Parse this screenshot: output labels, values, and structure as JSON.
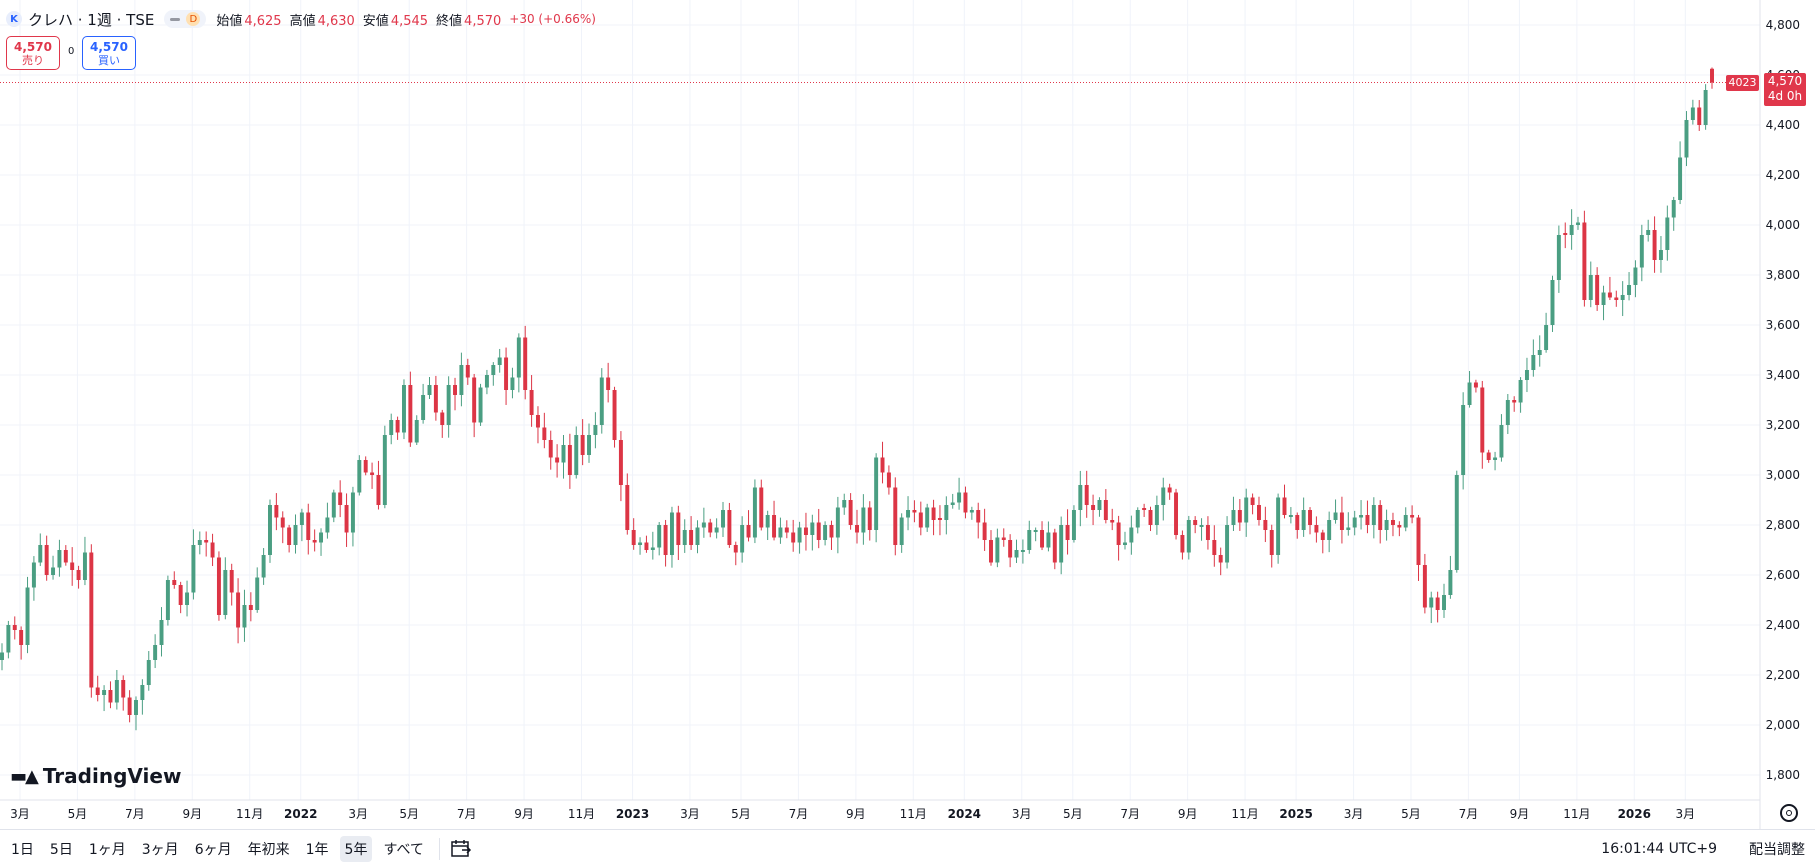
{
  "header": {
    "symbol_badge": "K",
    "symbol_title": "クレハ · 1週 · TSE",
    "interval_badge": "D",
    "open_label": "始値",
    "open_value": "4,625",
    "high_label": "高値",
    "high_value": "4,630",
    "low_label": "安値",
    "low_value": "4,545",
    "close_label": "終値",
    "close_value": "4,570",
    "change": "+30 (+0.66%)"
  },
  "trade": {
    "sell_price": "4,570",
    "sell_label": "売り",
    "spread": "0",
    "buy_price": "4,570",
    "buy_label": "買い"
  },
  "price_tag": {
    "price": "4,570",
    "countdown": "4d 0h",
    "bar_count": "4023"
  },
  "brand": "TradingView",
  "ranges": [
    "1日",
    "5日",
    "1ヶ月",
    "3ヶ月",
    "6ヶ月",
    "年初来",
    "1年",
    "5年",
    "すべて"
  ],
  "active_range": "5年",
  "bottom": {
    "clock": "16:01:44 UTC+9",
    "adjust_label": "配当調整"
  },
  "colors": {
    "up": "#4a9e82",
    "down": "#dc3545",
    "grid": "#f0f3fa",
    "accent": "#e0374b"
  },
  "chart_data": {
    "type": "candlestick",
    "title": "クレハ · 1週 · TSE",
    "y_axis_ticks": [
      1800,
      2000,
      2200,
      2400,
      2600,
      2800,
      3000,
      3200,
      3400,
      3600,
      3800,
      4000,
      4200,
      4400,
      4600,
      4800
    ],
    "y_range": [
      1700,
      4900
    ],
    "x_axis_labels": [
      "3月",
      "5月",
      "7月",
      "9月",
      "11月",
      "2022",
      "3月",
      "5月",
      "7月",
      "9月",
      "11月",
      "2023",
      "3月",
      "5月",
      "7月",
      "9月",
      "11月",
      "2024",
      "3月",
      "5月",
      "7月",
      "9月",
      "11月",
      "2025",
      "3月",
      "5月",
      "7月",
      "9月",
      "11月",
      "2026",
      "3月"
    ],
    "x_label_weeks": [
      0,
      9,
      18,
      27,
      36,
      44,
      53,
      61,
      70,
      79,
      88,
      96,
      105,
      113,
      122,
      131,
      140,
      148,
      157,
      165,
      174,
      183,
      192,
      200,
      209,
      218,
      227,
      235,
      244,
      253,
      261
    ],
    "current_price": 4570,
    "weekly_close": [
      2290,
      2400,
      2380,
      2320,
      2550,
      2650,
      2720,
      2600,
      2630,
      2700,
      2650,
      2620,
      2580,
      2690,
      2150,
      2120,
      2140,
      2090,
      2180,
      2110,
      2040,
      2100,
      2160,
      2260,
      2320,
      2420,
      2580,
      2560,
      2480,
      2530,
      2720,
      2740,
      2730,
      2670,
      2440,
      2620,
      2530,
      2390,
      2480,
      2460,
      2590,
      2680,
      2880,
      2830,
      2790,
      2720,
      2800,
      2850,
      2740,
      2730,
      2770,
      2830,
      2930,
      2880,
      2770,
      2930,
      3060,
      3010,
      3000,
      2880,
      3160,
      3220,
      3170,
      3360,
      3130,
      3220,
      3320,
      3360,
      3250,
      3200,
      3360,
      3320,
      3440,
      3390,
      3210,
      3350,
      3400,
      3440,
      3470,
      3340,
      3390,
      3550,
      3340,
      3240,
      3190,
      3140,
      3070,
      3050,
      3120,
      3000,
      3160,
      3080,
      3160,
      3200,
      3390,
      3340,
      3140,
      2960,
      2780,
      2720,
      2730,
      2700,
      2710,
      2800,
      2680,
      2850,
      2720,
      2780,
      2720,
      2790,
      2810,
      2770,
      2790,
      2860,
      2720,
      2690,
      2800,
      2750,
      2950,
      2790,
      2840,
      2750,
      2790,
      2770,
      2730,
      2790,
      2760,
      2810,
      2740,
      2800,
      2750,
      2870,
      2900,
      2800,
      2770,
      2870,
      2780,
      3070,
      3010,
      2950,
      2720,
      2830,
      2860,
      2850,
      2790,
      2870,
      2820,
      2820,
      2880,
      2890,
      2930,
      2850,
      2860,
      2810,
      2740,
      2650,
      2750,
      2740,
      2670,
      2700,
      2700,
      2780,
      2780,
      2710,
      2770,
      2650,
      2800,
      2740,
      2860,
      2960,
      2880,
      2860,
      2900,
      2820,
      2810,
      2720,
      2730,
      2790,
      2860,
      2860,
      2800,
      2880,
      2950,
      2930,
      2760,
      2690,
      2820,
      2800,
      2800,
      2740,
      2680,
      2650,
      2800,
      2860,
      2810,
      2910,
      2880,
      2820,
      2780,
      2680,
      2910,
      2840,
      2840,
      2780,
      2860,
      2800,
      2770,
      2740,
      2820,
      2850,
      2780,
      2790,
      2830,
      2840,
      2800,
      2880,
      2780,
      2820,
      2800,
      2790,
      2840,
      2830,
      2640,
      2470,
      2510,
      2460,
      2520,
      2620,
      3000,
      3280,
      3370,
      3350,
      3090,
      3060,
      3070,
      3200,
      3300,
      3290,
      3380,
      3420,
      3480,
      3500,
      3600,
      3780,
      3960,
      3960,
      4000,
      4010,
      3700,
      3800,
      3680,
      3730,
      3710,
      3700,
      3720,
      3760,
      3830,
      3960,
      3980,
      3860,
      3900,
      4030,
      4100,
      4270,
      4420,
      4470,
      4400,
      4540,
      4570
    ]
  }
}
